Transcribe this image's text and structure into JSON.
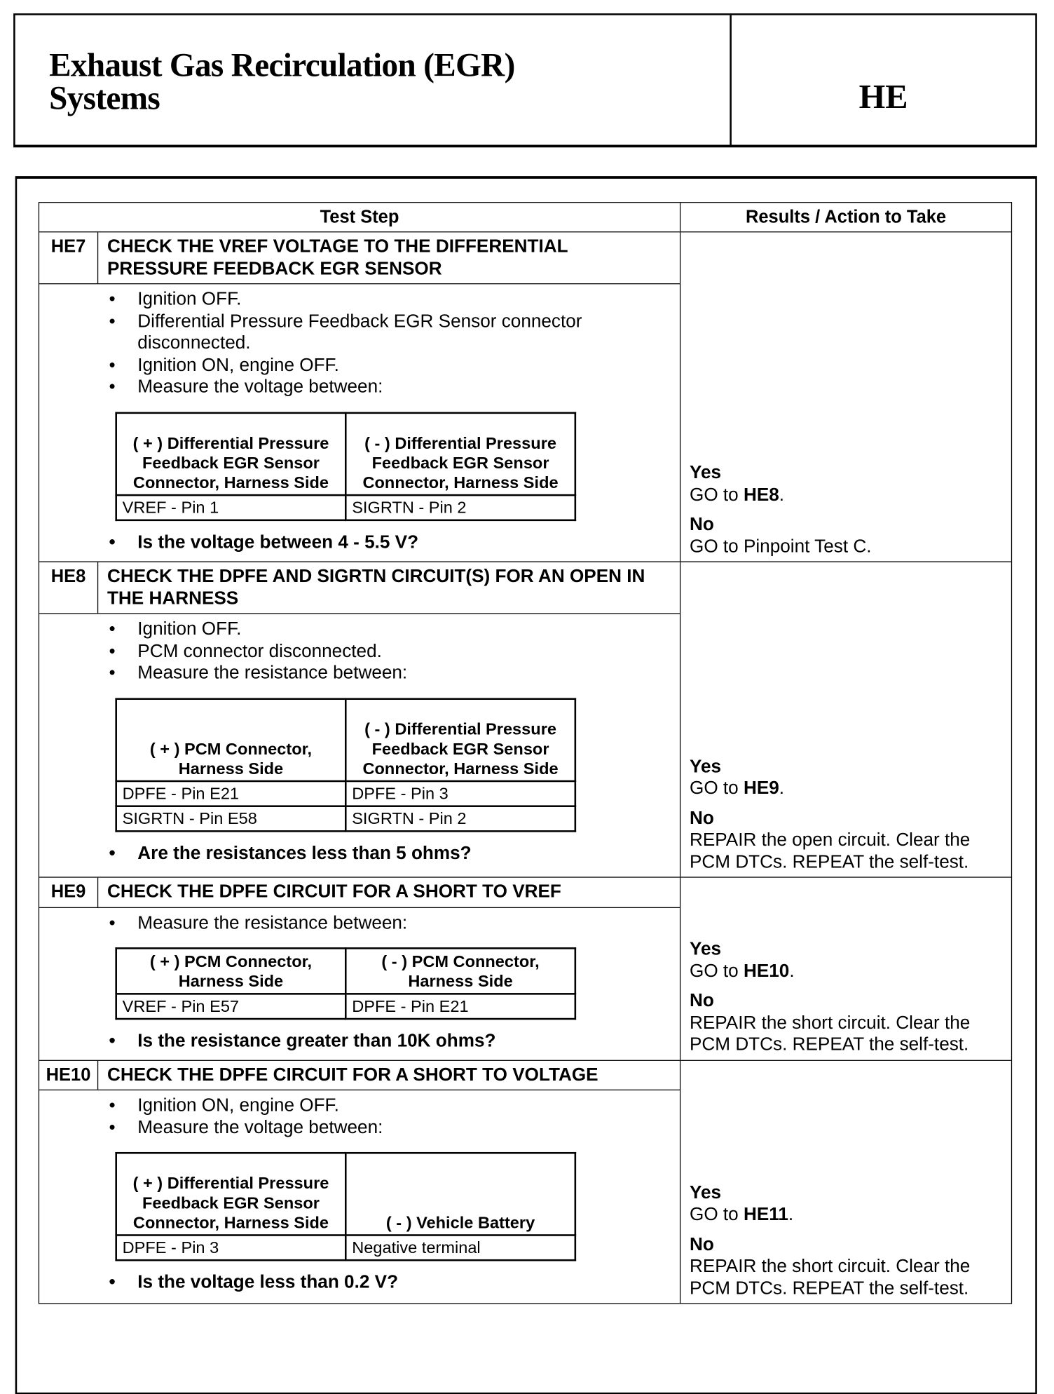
{
  "header": {
    "title_line1": "Exhaust Gas Recirculation (EGR)",
    "title_line2": "Systems",
    "section_code": "HE"
  },
  "table": {
    "col_test_step": "Test Step",
    "col_results": "Results / Action to Take",
    "steps": [
      {
        "code": "HE7",
        "title": "CHECK THE VREF VOLTAGE TO THE DIFFERENTIAL PRESSURE FEEDBACK EGR SENSOR",
        "bullets": [
          "Ignition OFF.",
          "Differential Pressure Feedback EGR Sensor connector disconnected.",
          "Ignition ON, engine OFF.",
          "Measure the voltage between:"
        ],
        "measure": {
          "headers": [
            "( + ) Differential Pressure Feedback EGR Sensor Connector, Harness Side",
            "( - ) Differential Pressure Feedback EGR Sensor Connector, Harness Side"
          ],
          "rows": [
            [
              "VREF - Pin 1",
              "SIGRTN - Pin 2"
            ]
          ]
        },
        "question": "Is the voltage between 4 - 5.5 V?",
        "results": {
          "yes": "Yes",
          "yes_prefix": "GO to ",
          "yes_target": "HE8",
          "yes_suffix": ".",
          "no": "No",
          "no_action": "GO to Pinpoint Test C."
        }
      },
      {
        "code": "HE8",
        "title": "CHECK THE DPFE AND SIGRTN CIRCUIT(S) FOR AN OPEN IN THE HARNESS",
        "bullets": [
          "Ignition OFF.",
          "PCM connector disconnected.",
          "Measure the resistance between:"
        ],
        "measure": {
          "headers": [
            "( + ) PCM Connector, Harness Side",
            "( - ) Differential Pressure Feedback EGR Sensor Connector, Harness Side"
          ],
          "rows": [
            [
              "DPFE - Pin E21",
              "DPFE - Pin 3"
            ],
            [
              "SIGRTN - Pin  E58",
              "SIGRTN - Pin 2"
            ]
          ]
        },
        "question": "Are the resistances less than 5 ohms?",
        "results": {
          "yes": "Yes",
          "yes_prefix": "GO to ",
          "yes_target": "HE9",
          "yes_suffix": ".",
          "no": "No",
          "no_action": "REPAIR the open circuit. Clear the PCM DTCs. REPEAT the self-test."
        }
      },
      {
        "code": "HE9",
        "title": "CHECK THE DPFE CIRCUIT FOR A SHORT TO VREF",
        "bullets": [
          "Measure the resistance between:"
        ],
        "measure": {
          "headers": [
            "( + ) PCM Connector, Harness Side",
            "( - ) PCM Connector, Harness Side"
          ],
          "rows": [
            [
              "VREF - Pin E57",
              "DPFE - Pin E21"
            ]
          ]
        },
        "question": "Is the resistance greater than 10K ohms?",
        "results": {
          "yes": "Yes",
          "yes_prefix": "GO to ",
          "yes_target": "HE10",
          "yes_suffix": ".",
          "no": "No",
          "no_action": "REPAIR the short circuit. Clear the PCM DTCs. REPEAT the self-test."
        }
      },
      {
        "code": "HE10",
        "title": "CHECK THE DPFE CIRCUIT FOR A SHORT TO VOLTAGE",
        "bullets": [
          "Ignition ON, engine OFF.",
          "Measure the voltage between:"
        ],
        "measure": {
          "headers": [
            "( + ) Differential Pressure Feedback EGR Sensor Connector, Harness Side",
            "( - ) Vehicle Battery"
          ],
          "rows": [
            [
              "DPFE - Pin 3",
              "Negative terminal"
            ]
          ]
        },
        "question": "Is the voltage less than 0.2 V?",
        "results": {
          "yes": "Yes",
          "yes_prefix": "GO to ",
          "yes_target": "HE11",
          "yes_suffix": ".",
          "no": "No",
          "no_action": "REPAIR the short circuit. Clear the PCM DTCs. REPEAT the self-test."
        }
      }
    ]
  }
}
